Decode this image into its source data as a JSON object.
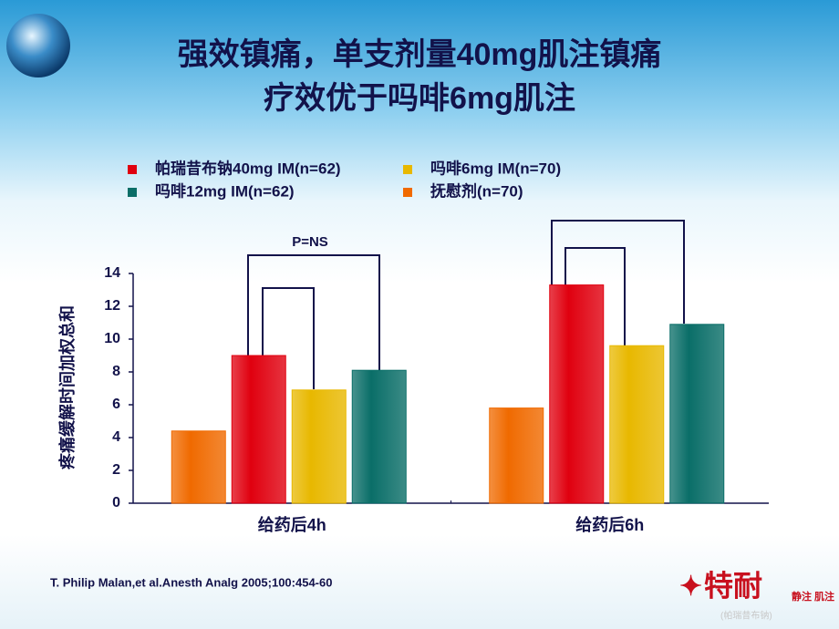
{
  "chart_data": {
    "type": "bar",
    "title": [
      "强效镇痛，单支剂量40mg肌注镇痛",
      "疗效优于吗啡6mg肌注"
    ],
    "ylabel": "疼痛缓解时间加权总和",
    "categories": [
      "给药后4h",
      "给药后6h"
    ],
    "series": [
      {
        "name": "帕瑞昔布钠40mg IM(n=62)",
        "color": "#e0000f",
        "values": [
          9.0,
          13.3
        ]
      },
      {
        "name": "吗啡6mg IM(n=70)",
        "color": "#e8b800",
        "values": [
          6.9,
          9.6
        ]
      },
      {
        "name": "吗啡12mg IM(n=62)",
        "color": "#0a6e68",
        "values": [
          8.1,
          10.9
        ]
      },
      {
        "name": "抚慰剂(n=70)",
        "color": "#f06a00",
        "values": [
          4.4,
          5.8
        ]
      }
    ],
    "ylim": [
      0,
      14
    ],
    "yticks": [
      0,
      2,
      4,
      6,
      8,
      10,
      12,
      14
    ],
    "annotation": "P=NS",
    "source": "T. Philip Malan,et al.Anesth Analg 2005;100:454-60"
  },
  "logo": {
    "name": "特耐",
    "tag": "静注 肌注",
    "sub": "(帕瑞昔布钠)"
  }
}
